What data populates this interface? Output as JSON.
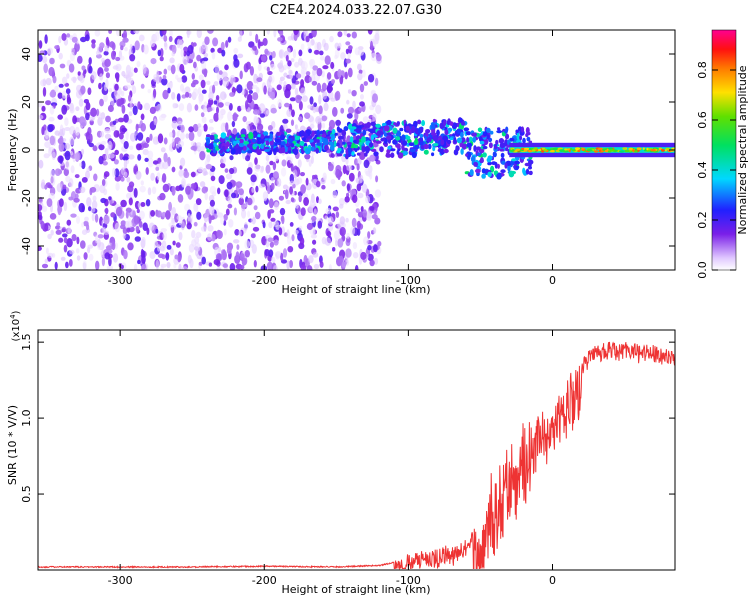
{
  "title": "C2E4.2024.033.22.07.G30",
  "chart_data": [
    {
      "type": "heatmap",
      "name": "spectrogram",
      "xlabel": "Height of straight line (km)",
      "ylabel": "Frequency (Hz)",
      "xlim": [
        -357,
        85
      ],
      "ylim": [
        -50,
        50
      ],
      "xticks": [
        -300,
        -200,
        -100,
        0
      ],
      "yticks": [
        -40,
        -20,
        0,
        20,
        40
      ],
      "grid": false,
      "colorbar": {
        "label": "Normalized spectral amplitude",
        "range": [
          0.0,
          0.96
        ],
        "ticks": [
          0.0,
          0.2,
          0.4,
          0.6,
          0.8
        ],
        "tick_labels": [
          "0.0",
          "0.2",
          "0.4",
          "0.6",
          "0.8"
        ],
        "colormap": "rainbow (white-violet-blue-cyan-green-yellow-red-magenta)"
      },
      "regions": [
        {
          "description": "broadband noise",
          "x_range": [
            -357,
            -120
          ],
          "freq_range": [
            -50,
            50
          ],
          "amplitude_range": [
            0.0,
            0.1
          ]
        },
        {
          "description": "signal band",
          "x_range": [
            -240,
            -15
          ],
          "freq_range": [
            -8,
            10
          ],
          "amplitude_range": [
            0.05,
            0.35
          ]
        },
        {
          "description": "narrow carrier",
          "x_range": [
            -30,
            85
          ],
          "freq_center": 0,
          "freq_width": 3,
          "amplitude_range": [
            0.3,
            0.9
          ]
        }
      ]
    },
    {
      "type": "line",
      "name": "snr",
      "xlabel": "Height of straight line (km)",
      "ylabel": "SNR (10 * V/V)",
      "y_multiplier_label": "(x10",
      "y_multiplier_exp": "4",
      "y_multiplier_close": ")",
      "xlim": [
        -357,
        85
      ],
      "ylim": [
        0,
        1.58
      ],
      "xticks": [
        -300,
        -200,
        -100,
        0
      ],
      "yticks": [
        0.5,
        1.0,
        1.5
      ],
      "ytick_labels": [
        "0.5",
        "1.0",
        "1.5"
      ],
      "grid": false,
      "series": [
        {
          "name": "SNR",
          "color": "#ee3333",
          "x": [
            -357,
            -300,
            -250,
            -200,
            -150,
            -120,
            -110,
            -100,
            -90,
            -80,
            -70,
            -60,
            -50,
            -45,
            -40,
            -35,
            -30,
            -25,
            -20,
            -15,
            -10,
            -5,
            0,
            5,
            10,
            15,
            20,
            25,
            30,
            40,
            50,
            60,
            70,
            85
          ],
          "y": [
            0.02,
            0.02,
            0.02,
            0.025,
            0.02,
            0.03,
            0.05,
            0.1,
            0.12,
            0.13,
            0.15,
            0.2,
            0.35,
            0.5,
            0.6,
            0.7,
            0.8,
            0.85,
            0.9,
            0.95,
            1.0,
            1.05,
            1.1,
            1.15,
            1.2,
            1.3,
            1.4,
            1.45,
            1.48,
            1.5,
            1.5,
            1.49,
            1.48,
            1.45
          ]
        }
      ]
    }
  ],
  "colors": {
    "snr_line": "#ee3333",
    "axis": "#000000",
    "background": "#ffffff"
  }
}
